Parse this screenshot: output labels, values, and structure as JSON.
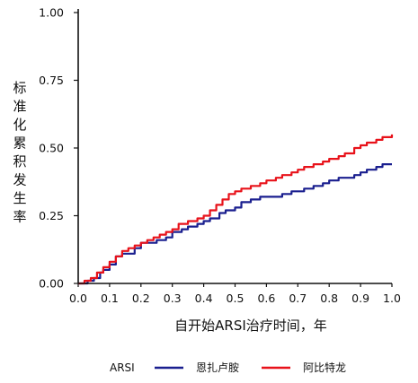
{
  "chart_data": {
    "type": "line",
    "title": "",
    "xlabel": "自开始ARSI治疗时间，年",
    "ylabel": "标准化累积发生率",
    "xlim": [
      0,
      1.0
    ],
    "ylim": [
      0,
      1.0
    ],
    "x_ticks": [
      "0.0",
      "0.1",
      "0.2",
      "0.3",
      "0.4",
      "0.5",
      "0.6",
      "0.7",
      "0.8",
      "0.9",
      "1.0"
    ],
    "y_ticks": [
      "0.00",
      "0.25",
      "0.50",
      "0.75",
      "1.00"
    ],
    "grid": false,
    "legend": {
      "title": "ARSI",
      "placement": "bottom"
    },
    "series": [
      {
        "name": "恩扎卢胺",
        "color": "#1a1f8f",
        "x": [
          0.0,
          0.02,
          0.03,
          0.05,
          0.07,
          0.08,
          0.1,
          0.12,
          0.14,
          0.15,
          0.18,
          0.2,
          0.22,
          0.25,
          0.28,
          0.3,
          0.33,
          0.35,
          0.38,
          0.4,
          0.42,
          0.45,
          0.47,
          0.5,
          0.52,
          0.55,
          0.58,
          0.6,
          0.63,
          0.65,
          0.68,
          0.7,
          0.72,
          0.75,
          0.78,
          0.8,
          0.83,
          0.85,
          0.88,
          0.9,
          0.92,
          0.95,
          0.97,
          1.0
        ],
        "y": [
          0.0,
          0.0,
          0.01,
          0.02,
          0.04,
          0.05,
          0.07,
          0.1,
          0.11,
          0.11,
          0.13,
          0.15,
          0.15,
          0.16,
          0.17,
          0.19,
          0.2,
          0.21,
          0.22,
          0.23,
          0.24,
          0.26,
          0.27,
          0.28,
          0.3,
          0.31,
          0.32,
          0.32,
          0.32,
          0.33,
          0.34,
          0.34,
          0.35,
          0.36,
          0.37,
          0.38,
          0.39,
          0.39,
          0.4,
          0.41,
          0.42,
          0.43,
          0.44,
          0.44
        ]
      },
      {
        "name": "阿比特龙",
        "color": "#e8121a",
        "x": [
          0.0,
          0.02,
          0.04,
          0.06,
          0.08,
          0.1,
          0.12,
          0.14,
          0.16,
          0.18,
          0.2,
          0.22,
          0.24,
          0.26,
          0.28,
          0.3,
          0.32,
          0.35,
          0.38,
          0.4,
          0.42,
          0.44,
          0.46,
          0.48,
          0.5,
          0.52,
          0.55,
          0.58,
          0.6,
          0.63,
          0.65,
          0.68,
          0.7,
          0.72,
          0.75,
          0.78,
          0.8,
          0.83,
          0.85,
          0.88,
          0.9,
          0.92,
          0.95,
          0.97,
          1.0
        ],
        "y": [
          0.0,
          0.01,
          0.02,
          0.04,
          0.06,
          0.08,
          0.1,
          0.12,
          0.13,
          0.14,
          0.15,
          0.16,
          0.17,
          0.18,
          0.19,
          0.2,
          0.22,
          0.23,
          0.24,
          0.25,
          0.27,
          0.29,
          0.31,
          0.33,
          0.34,
          0.35,
          0.36,
          0.37,
          0.38,
          0.39,
          0.4,
          0.41,
          0.42,
          0.43,
          0.44,
          0.45,
          0.46,
          0.47,
          0.48,
          0.5,
          0.51,
          0.52,
          0.53,
          0.54,
          0.55
        ]
      }
    ]
  }
}
